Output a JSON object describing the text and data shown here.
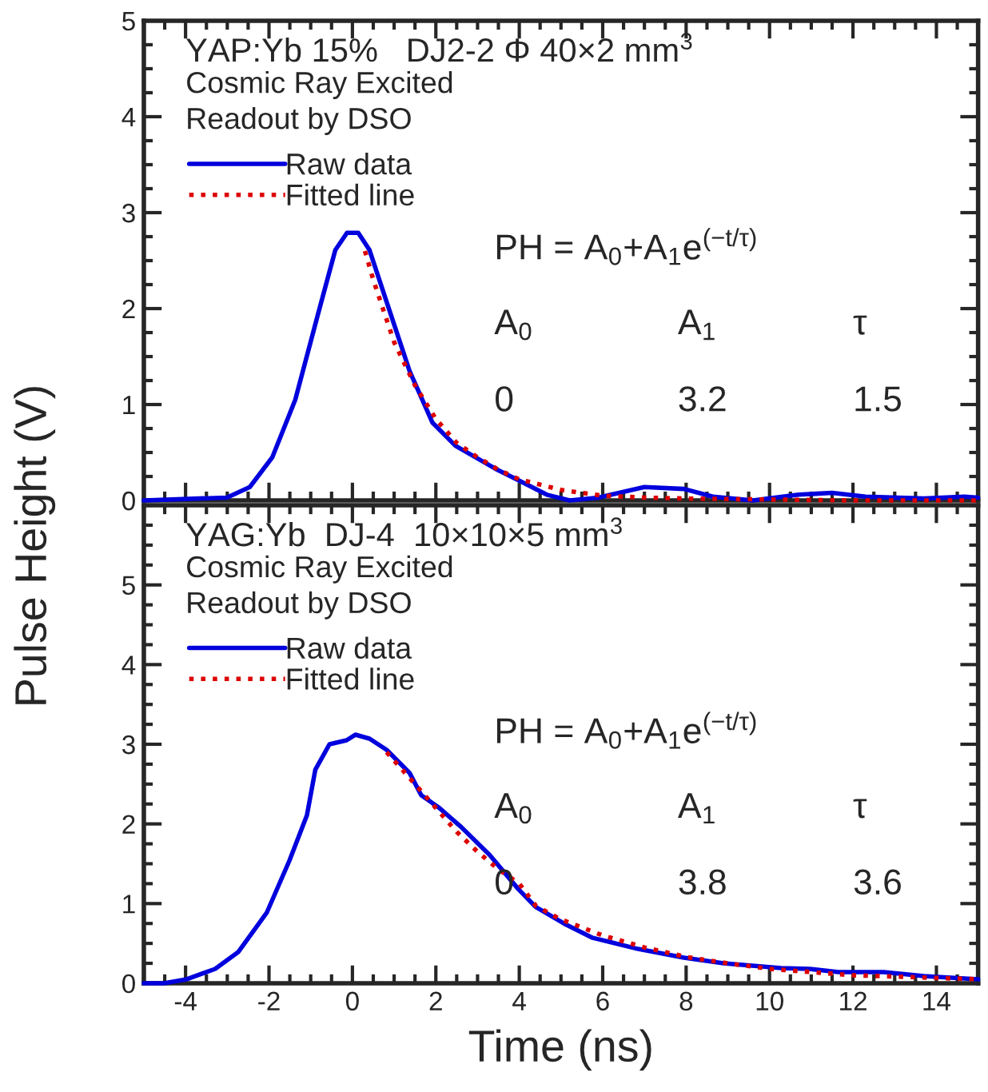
{
  "chart_data": [
    {
      "type": "line",
      "title": "YAP:Yb 15%   DJ2-2 Φ 40×2 mm$^{3}$",
      "ylabel": "Pulse Height (V)",
      "annotations": [
        "Cosmic Ray Excited",
        "Readout by DSO",
        "PH = A$_{0}$+A$_{1}$e$^{(−t/τ)}$",
        "A$_{0}$",
        "A$_{1}$",
        "τ",
        "0",
        "3.2",
        "1.5"
      ],
      "xlim": [
        -5,
        15
      ],
      "xticks": [
        -4,
        -2,
        0,
        2,
        4,
        6,
        8,
        10,
        12,
        14
      ],
      "ylim": [
        0,
        5
      ],
      "yticks": [
        0,
        1,
        2,
        3,
        4,
        5
      ],
      "tick_labels": "y",
      "legend": "top left",
      "grid": false,
      "series": [
        {
          "name": "Raw data",
          "color": "#0000dd",
          "line_style": "solid",
          "x": [
            -5,
            -3.01,
            -2.46,
            -1.92,
            -1.37,
            -0.82,
            -0.41,
            -0.13,
            0.14,
            0.41,
            0.82,
            1.37,
            1.92,
            2.47,
            3.43,
            3.98,
            4.66,
            5.21,
            5.9,
            7.0,
            7.95,
            8.64,
            9.6,
            10.7,
            11.5,
            12.3,
            13.7,
            14.67,
            15
          ],
          "values": [
            0.0,
            0.03,
            0.14,
            0.45,
            1.05,
            1.95,
            2.61,
            2.79,
            2.79,
            2.61,
            2.07,
            1.35,
            0.81,
            0.57,
            0.33,
            0.21,
            0.06,
            0.0,
            0.03,
            0.14,
            0.12,
            0.04,
            0.0,
            0.06,
            0.08,
            0.04,
            0.02,
            0.04,
            0.03
          ]
        },
        {
          "name": "Fitted line",
          "color": "#dd0000",
          "line_style": "dotted",
          "x": [
            0.3,
            0.5,
            1,
            1.5,
            2,
            2.5,
            3,
            3.5,
            4,
            5,
            6,
            7,
            8,
            10,
            12,
            15
          ],
          "values": [
            2.6,
            2.3,
            1.65,
            1.2,
            0.85,
            0.6,
            0.45,
            0.32,
            0.22,
            0.11,
            0.05,
            0.03,
            0.02,
            0.01,
            0.0,
            0.0
          ]
        }
      ]
    },
    {
      "type": "line",
      "title": "YAG:Yb  DJ-4  10×10×5 mm$^{3}$",
      "xlabel": "Time (ns)",
      "annotations": [
        "Cosmic Ray Excited",
        "Readout by DSO",
        "PH = A$_{0}$+A$_{1}$e$^{(−t/τ)}$",
        "A$_{0}$",
        "A$_{1}$",
        "τ",
        "0",
        "3.8",
        "3.6"
      ],
      "xlim": [
        -5,
        15
      ],
      "xticks": [
        -4,
        -2,
        0,
        2,
        4,
        6,
        8,
        10,
        12,
        14
      ],
      "ylim": [
        0,
        6
      ],
      "yticks": [
        0,
        1,
        2,
        3,
        4,
        5
      ],
      "legend": "top left",
      "grid": false,
      "series": [
        {
          "name": "Raw data",
          "color": "#0000dd",
          "line_style": "solid",
          "x": [
            -5,
            -4.52,
            -3.97,
            -3.29,
            -2.74,
            -2.05,
            -1.51,
            -1.09,
            -0.89,
            -0.55,
            -0.14,
            0.07,
            0.41,
            0.82,
            1.37,
            1.65,
            2.06,
            2.61,
            3.29,
            3.98,
            4.39,
            5.07,
            5.76,
            6.85,
            7.95,
            8.9,
            10.28,
            10.96,
            11.65,
            12.74,
            13.7,
            15
          ],
          "values": [
            0.0,
            0.0,
            0.05,
            0.18,
            0.39,
            0.89,
            1.54,
            2.11,
            2.68,
            3.0,
            3.05,
            3.12,
            3.07,
            2.93,
            2.64,
            2.36,
            2.21,
            1.96,
            1.61,
            1.18,
            0.96,
            0.75,
            0.57,
            0.43,
            0.32,
            0.25,
            0.19,
            0.18,
            0.14,
            0.14,
            0.09,
            0.05
          ]
        },
        {
          "name": "Fitted line",
          "color": "#dd0000",
          "line_style": "dotted",
          "x": [
            0.82,
            1.5,
            2,
            2.5,
            3,
            3.5,
            4,
            4.4,
            5,
            6,
            7,
            8,
            9,
            10,
            12,
            15
          ],
          "values": [
            2.9,
            2.5,
            2.2,
            1.9,
            1.65,
            1.43,
            1.25,
            0.97,
            0.8,
            0.6,
            0.45,
            0.33,
            0.25,
            0.18,
            0.1,
            0.05
          ]
        }
      ]
    }
  ]
}
